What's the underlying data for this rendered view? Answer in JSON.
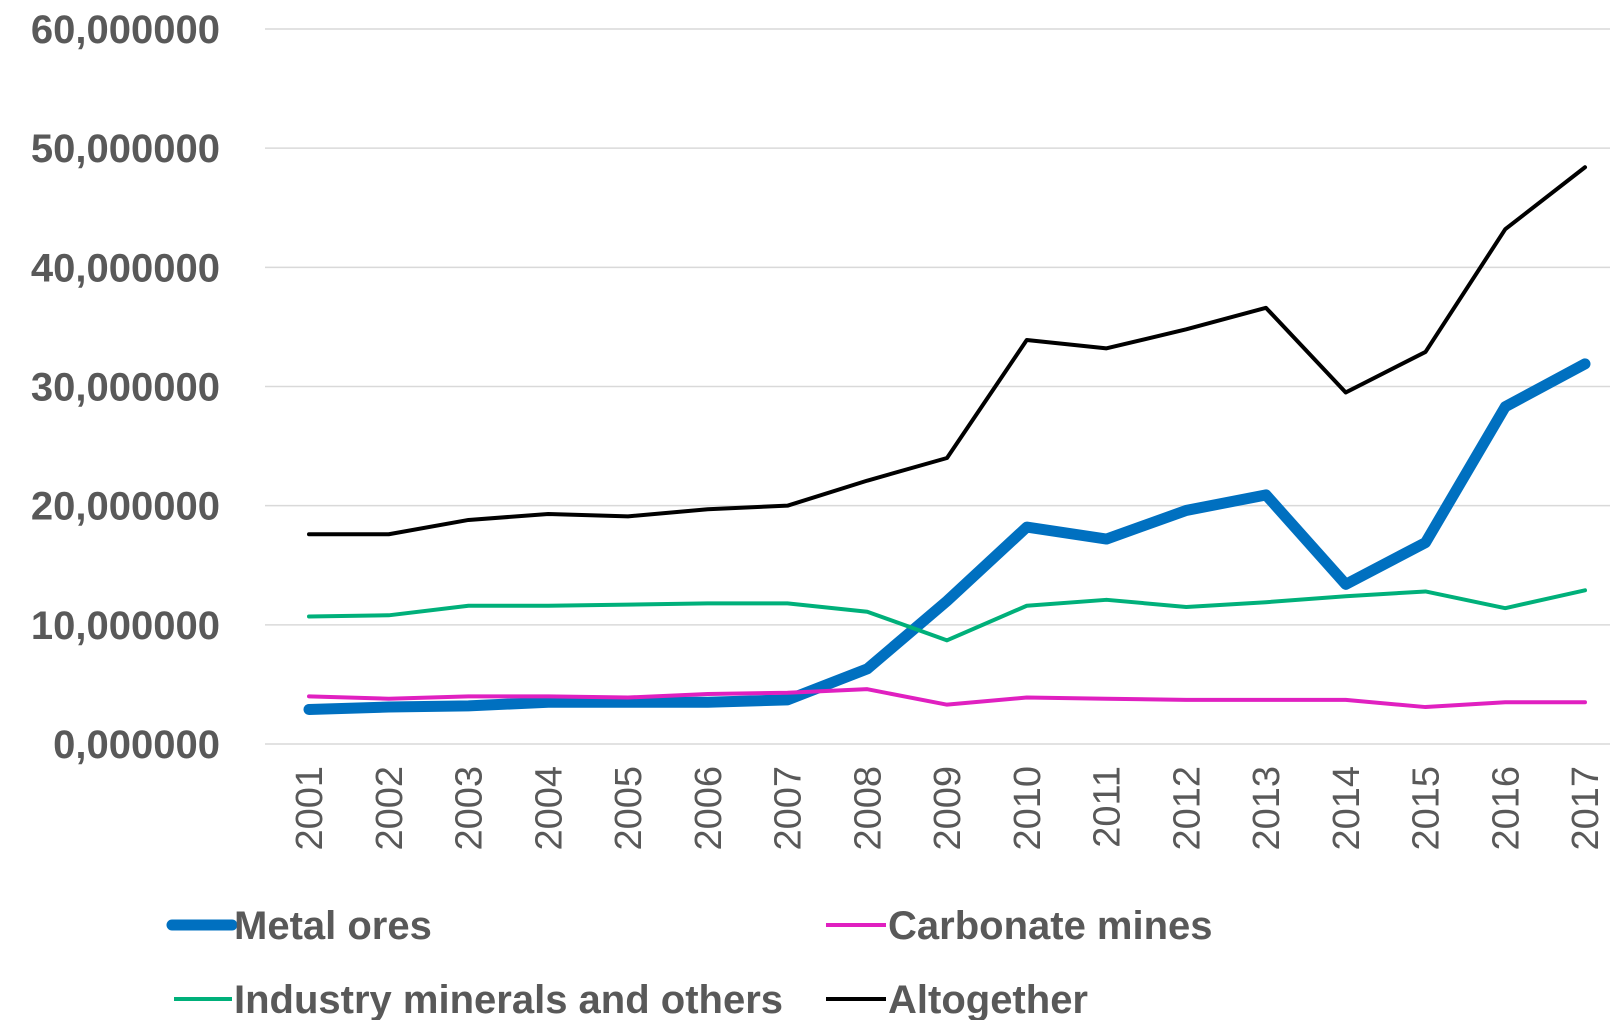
{
  "chart_data": {
    "type": "line",
    "title": "",
    "xlabel": "",
    "ylabel": "",
    "x": [
      "2001",
      "2002",
      "2003",
      "2004",
      "2005",
      "2006",
      "2007",
      "2008",
      "2009",
      "2010",
      "2011",
      "2012",
      "2013",
      "2014",
      "2015",
      "2016",
      "2017"
    ],
    "ylim": [
      0,
      60
    ],
    "y_ticks": [
      {
        "value": 0,
        "label": "0,000000"
      },
      {
        "value": 10,
        "label": "10,000000"
      },
      {
        "value": 20,
        "label": "20,000000"
      },
      {
        "value": 30,
        "label": "30,000000"
      },
      {
        "value": 40,
        "label": "40,000000"
      },
      {
        "value": 50,
        "label": "50,000000"
      },
      {
        "value": 60,
        "label": "60,000000"
      }
    ],
    "grid": "horizontal",
    "legend_position": "bottom",
    "series": [
      {
        "name": "Metal ores",
        "color": "#0070c0",
        "width": "thick",
        "values": [
          2.9,
          3.1,
          3.2,
          3.5,
          3.5,
          3.5,
          3.7,
          6.3,
          12.0,
          18.2,
          17.2,
          19.6,
          20.9,
          13.4,
          16.9,
          28.3,
          31.9
        ]
      },
      {
        "name": "Carbonate mines",
        "color": "#e020c0",
        "width": "thin",
        "values": [
          4.0,
          3.8,
          4.0,
          4.0,
          3.9,
          4.2,
          4.3,
          4.6,
          3.3,
          3.9,
          3.8,
          3.7,
          3.7,
          3.7,
          3.1,
          3.5,
          3.5
        ]
      },
      {
        "name": "Industry minerals and others",
        "color": "#00b07a",
        "width": "thin",
        "values": [
          10.7,
          10.8,
          11.6,
          11.6,
          11.7,
          11.8,
          11.8,
          11.1,
          8.7,
          11.6,
          12.1,
          11.5,
          11.9,
          12.4,
          12.8,
          11.4,
          12.9
        ]
      },
      {
        "name": "Altogether",
        "color": "#000000",
        "width": "thin",
        "values": [
          17.6,
          17.6,
          18.8,
          19.3,
          19.1,
          19.7,
          20.0,
          22.1,
          24.0,
          33.9,
          33.2,
          34.8,
          36.6,
          29.5,
          32.9,
          43.2,
          48.4
        ]
      }
    ]
  }
}
